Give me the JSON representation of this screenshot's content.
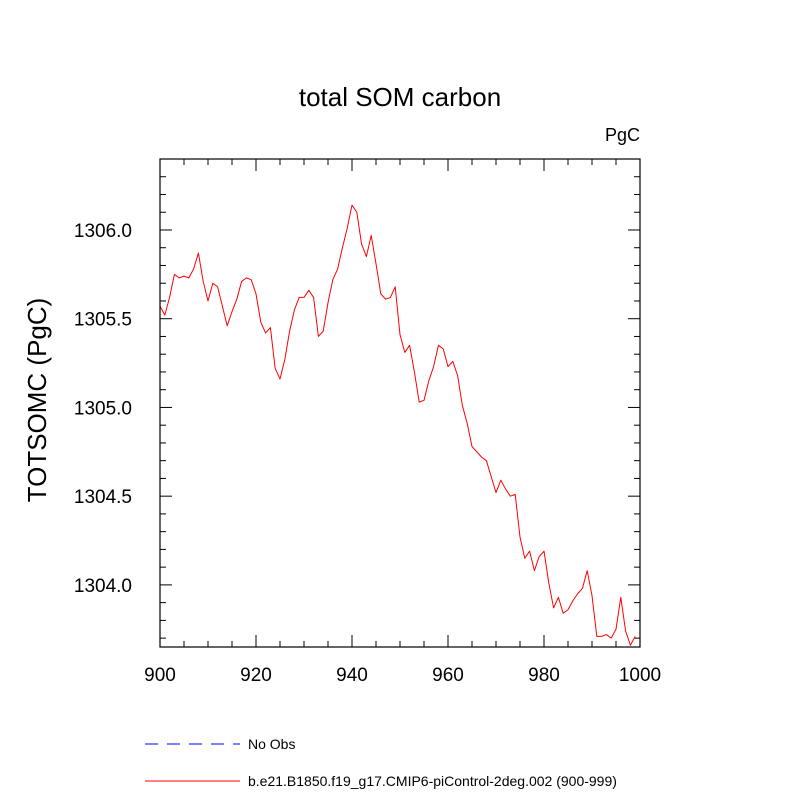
{
  "chart_data": {
    "type": "line",
    "title": "total SOM carbon",
    "units_label": "PgC",
    "xlabel": "",
    "ylabel": "TOTSOMC  (PgC)",
    "xlim": [
      900,
      1000
    ],
    "ylim": [
      1303.65,
      1306.4
    ],
    "x_ticks": [
      900,
      920,
      940,
      960,
      980,
      1000
    ],
    "x_tick_labels": [
      "900",
      "920",
      "940",
      "960",
      "980",
      "1000"
    ],
    "y_ticks": [
      1304.0,
      1304.5,
      1305.0,
      1305.5,
      1306.0
    ],
    "y_tick_labels": [
      "1304.0",
      "1304.5",
      "1305.0",
      "1305.5",
      "1306.0"
    ],
    "legend": [
      {
        "label": "No Obs",
        "color": "#0000ff",
        "style": "dashed"
      },
      {
        "label": "b.e21.B1850.f19_g17.CMIP6-piControl-2deg.002 (900-999)",
        "color": "#ff0000",
        "style": "solid"
      }
    ],
    "series": [
      {
        "name": "b.e21.B1850.f19_g17.CMIP6-piControl-2deg.002 (900-999)",
        "color": "#ff0000",
        "x": [
          900,
          901,
          902,
          903,
          904,
          905,
          906,
          907,
          908,
          909,
          910,
          911,
          912,
          913,
          914,
          915,
          916,
          917,
          918,
          919,
          920,
          921,
          922,
          923,
          924,
          925,
          926,
          927,
          928,
          929,
          930,
          931,
          932,
          933,
          934,
          935,
          936,
          937,
          938,
          939,
          940,
          941,
          942,
          943,
          944,
          945,
          946,
          947,
          948,
          949,
          950,
          951,
          952,
          953,
          954,
          955,
          956,
          957,
          958,
          959,
          960,
          961,
          962,
          963,
          964,
          965,
          966,
          967,
          968,
          969,
          970,
          971,
          972,
          973,
          974,
          975,
          976,
          977,
          978,
          979,
          980,
          981,
          982,
          983,
          984,
          985,
          986,
          987,
          988,
          989,
          990,
          991,
          992,
          993,
          994,
          995,
          996,
          997,
          998,
          999
        ],
        "values": [
          1305.57,
          1305.52,
          1305.62,
          1305.75,
          1305.73,
          1305.74,
          1305.73,
          1305.78,
          1305.87,
          1305.71,
          1305.6,
          1305.7,
          1305.68,
          1305.57,
          1305.46,
          1305.54,
          1305.61,
          1305.71,
          1305.73,
          1305.72,
          1305.64,
          1305.48,
          1305.42,
          1305.45,
          1305.22,
          1305.16,
          1305.27,
          1305.43,
          1305.55,
          1305.62,
          1305.62,
          1305.66,
          1305.62,
          1305.4,
          1305.43,
          1305.59,
          1305.72,
          1305.78,
          1305.9,
          1306.01,
          1306.14,
          1306.1,
          1305.92,
          1305.85,
          1305.97,
          1305.81,
          1305.64,
          1305.61,
          1305.62,
          1305.68,
          1305.41,
          1305.31,
          1305.35,
          1305.2,
          1305.03,
          1305.04,
          1305.15,
          1305.23,
          1305.35,
          1305.33,
          1305.23,
          1305.26,
          1305.18,
          1305.01,
          1304.91,
          1304.78,
          1304.75,
          1304.72,
          1304.7,
          1304.61,
          1304.52,
          1304.59,
          1304.54,
          1304.5,
          1304.51,
          1304.27,
          1304.15,
          1304.19,
          1304.08,
          1304.16,
          1304.19,
          1304.01,
          1303.87,
          1303.93,
          1303.84,
          1303.86,
          1303.91,
          1303.95,
          1303.98,
          1304.08,
          1303.94,
          1303.71,
          1303.71,
          1303.72,
          1303.7,
          1303.75,
          1303.93,
          1303.74,
          1303.66,
          1303.71
        ]
      },
      {
        "name": "No Obs",
        "color": "#0000ff",
        "x": [],
        "values": []
      }
    ]
  }
}
